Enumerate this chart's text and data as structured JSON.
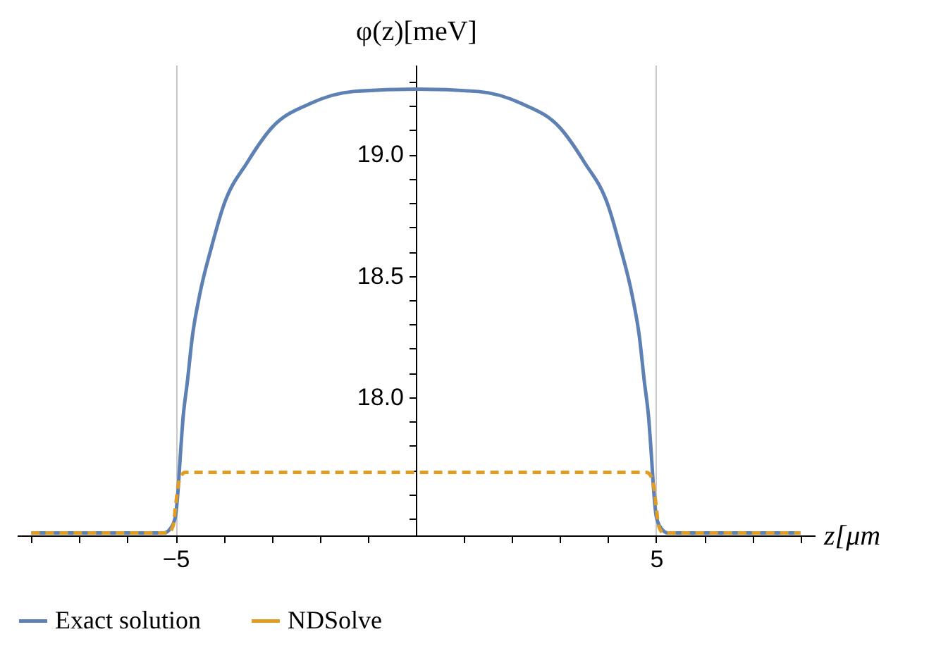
{
  "chart_data": {
    "type": "line",
    "xlabel": "z[μm",
    "ylabel": "φ(z)[meV]",
    "xlim": [
      -8.3,
      8.3
    ],
    "ylim": [
      17.43,
      19.37
    ],
    "xticks": [
      {
        "value": -8,
        "label": null
      },
      {
        "value": -7,
        "label": null
      },
      {
        "value": -6,
        "label": null
      },
      {
        "value": -5,
        "label": "−5"
      },
      {
        "value": -4,
        "label": null
      },
      {
        "value": -3,
        "label": null
      },
      {
        "value": -2,
        "label": null
      },
      {
        "value": -1,
        "label": null
      },
      {
        "value": 1,
        "label": null
      },
      {
        "value": 2,
        "label": null
      },
      {
        "value": 3,
        "label": null
      },
      {
        "value": 4,
        "label": null
      },
      {
        "value": 5,
        "label": "5"
      },
      {
        "value": 6,
        "label": null
      },
      {
        "value": 7,
        "label": null
      },
      {
        "value": 8,
        "label": null
      }
    ],
    "yticks": [
      {
        "value": 17.5,
        "label": null
      },
      {
        "value": 17.6,
        "label": null
      },
      {
        "value": 17.7,
        "label": null
      },
      {
        "value": 17.8,
        "label": null
      },
      {
        "value": 17.9,
        "label": null
      },
      {
        "value": 18,
        "label": "18.0"
      },
      {
        "value": 18.1,
        "label": null
      },
      {
        "value": 18.2,
        "label": null
      },
      {
        "value": 18.3,
        "label": null
      },
      {
        "value": 18.4,
        "label": null
      },
      {
        "value": 18.5,
        "label": "18.5"
      },
      {
        "value": 18.6,
        "label": null
      },
      {
        "value": 18.7,
        "label": null
      },
      {
        "value": 18.8,
        "label": null
      },
      {
        "value": 18.9,
        "label": null
      },
      {
        "value": 19,
        "label": "19.0"
      },
      {
        "value": 19.1,
        "label": null
      },
      {
        "value": 19.2,
        "label": null
      },
      {
        "value": 19.3,
        "label": null
      }
    ],
    "grid": "x",
    "legend": "bottom",
    "series": [
      {
        "name": "Exact solution",
        "color": "#5e81b5",
        "line_style": "solid",
        "x": [
          -8,
          -5.25,
          -5.1,
          -5.0,
          -4.95,
          -4.9,
          -4.85,
          -4.75,
          -4.65,
          -4.5,
          -4.25,
          -4,
          -3.5,
          -3,
          -2.2,
          -1.3,
          0,
          1.3,
          2.2,
          3,
          3.5,
          4,
          4.25,
          4.5,
          4.65,
          4.75,
          4.85,
          4.9,
          4.95,
          5.0,
          5.1,
          5.25,
          8
        ],
        "values": [
          17.44,
          17.44,
          17.46,
          17.51,
          17.61,
          17.76,
          17.9,
          18.07,
          18.25,
          18.42,
          18.62,
          18.79,
          18.97,
          19.11,
          19.21,
          19.26,
          19.27,
          19.26,
          19.21,
          19.11,
          18.97,
          18.79,
          18.62,
          18.42,
          18.25,
          18.07,
          17.9,
          17.76,
          17.61,
          17.51,
          17.46,
          17.44,
          17.44
        ]
      },
      {
        "name": "NDSolve",
        "color": "#e19c24",
        "line_style": "dashed",
        "x": [
          -8,
          -5.15,
          -5.05,
          -5.0,
          -4.95,
          -4.9,
          -4.8,
          4.8,
          4.9,
          4.95,
          5.0,
          5.05,
          5.15,
          8
        ],
        "values": [
          17.44,
          17.44,
          17.47,
          17.55,
          17.63,
          17.67,
          17.69,
          17.69,
          17.67,
          17.63,
          17.55,
          17.47,
          17.44,
          17.44
        ]
      }
    ]
  }
}
